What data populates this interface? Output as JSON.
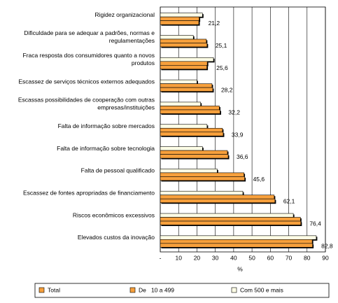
{
  "chart_data": {
    "type": "bar",
    "orientation": "horizontal",
    "categories": [
      "Rigidez organizacional",
      "Dificuldade para se adequar a padrões, normas e\nregulamentações",
      "Fraca resposta dos consumidores quanto a novos\nprodutos",
      "Escassez de serviços técnicos externos adequados",
      "Escassas possibilidades de cooperação com outras\nempresas/instituições",
      "Falta de informação sobre mercados",
      "Falta de informação sobre tecnologia",
      "Falta de pessoal qualificado",
      "Escassez de fontes apropriadas de financiamento",
      "Riscos econômicos excessivos",
      "Elevados custos da inovação"
    ],
    "series": [
      {
        "name": "Com 500 e mais",
        "color": "#ffffe6",
        "values": [
          23,
          18,
          29,
          20,
          22,
          25.5,
          23,
          31,
          45,
          72.5,
          85
        ]
      },
      {
        "name": "Total",
        "color": "#f7a03c",
        "values": [
          21.2,
          25.1,
          25.6,
          28.2,
          32.2,
          33.9,
          36.6,
          45.6,
          62.1,
          76.4,
          82.8
        ],
        "value_labels": [
          "21,2",
          "25,1",
          "25,6",
          "28,2",
          "32,2",
          "33,9",
          "36,6",
          "45,6",
          "62,1",
          "76,4",
          "82,8"
        ]
      },
      {
        "name": "De   10 a 499",
        "color": "#f7a03c",
        "values": [
          21,
          25.5,
          25.4,
          28.6,
          32.6,
          34.3,
          37,
          46,
          62.5,
          76.6,
          83
        ]
      }
    ],
    "legend_order": [
      1,
      2,
      0
    ],
    "xlabel": "%",
    "xlim": [
      0,
      90
    ],
    "xticks": [
      {
        "value": 0,
        "label": "-"
      },
      10,
      20,
      30,
      40,
      50,
      60,
      70,
      80,
      90
    ],
    "grid": true
  }
}
